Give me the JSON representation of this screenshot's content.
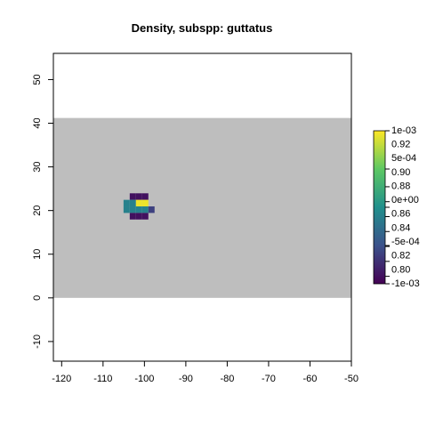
{
  "chart_data": {
    "type": "heatmap",
    "title": "Density, subspp: guttatus",
    "xlabel": "",
    "ylabel": "",
    "xlim": [
      -122,
      -50
    ],
    "ylim": [
      -14.5,
      56
    ],
    "x_ticks": [
      -120,
      -110,
      -100,
      -90,
      -80,
      -70,
      -60,
      -50
    ],
    "y_ticks": [
      -10,
      0,
      10,
      20,
      30,
      40,
      50
    ],
    "background_extent": {
      "x": [
        -122,
        -50
      ],
      "y": [
        0,
        41.2
      ]
    },
    "background_color": "#bebebe",
    "cell_size": 1.5,
    "cells": [
      {
        "x": -102.8,
        "y": 23.2,
        "value": 0.8
      },
      {
        "x": -101.3,
        "y": 23.2,
        "value": 0.8
      },
      {
        "x": -99.8,
        "y": 23.2,
        "value": 0.8
      },
      {
        "x": -104.3,
        "y": 21.7,
        "value": 0.88
      },
      {
        "x": -102.8,
        "y": 21.7,
        "value": 0.88
      },
      {
        "x": -101.3,
        "y": 21.7,
        "value": 0.99
      },
      {
        "x": -99.8,
        "y": 21.7,
        "value": 0.99
      },
      {
        "x": -104.3,
        "y": 20.2,
        "value": 0.88
      },
      {
        "x": -102.8,
        "y": 20.2,
        "value": 0.88
      },
      {
        "x": -101.3,
        "y": 20.2,
        "value": 0.88
      },
      {
        "x": -99.8,
        "y": 20.2,
        "value": 0.88
      },
      {
        "x": -98.3,
        "y": 20.2,
        "value": 0.83
      },
      {
        "x": -102.8,
        "y": 18.7,
        "value": 0.8
      },
      {
        "x": -101.3,
        "y": 18.7,
        "value": 0.8
      },
      {
        "x": -99.8,
        "y": 18.7,
        "value": 0.8
      }
    ],
    "colorbar": {
      "range": [
        0.79,
        0.995
      ],
      "colors": [
        "#440154",
        "#3b528b",
        "#21908c",
        "#5dc863",
        "#fde725"
      ],
      "labels_right": [
        "1e-03",
        "0.92",
        "5e-04",
        "0.90",
        "0.88",
        "0e+00",
        "0.86",
        "0.84",
        "-5e-04",
        "0.82",
        "0.80",
        "-1e-03"
      ],
      "labels_left": [
        "1e-03",
        "5e-04",
        "0e+00",
        "-5e-04",
        "-1e-03"
      ],
      "scale_labels": [
        "0.92",
        "0.90",
        "0.88",
        "0.86",
        "0.84",
        "0.82",
        "0.80"
      ]
    }
  }
}
